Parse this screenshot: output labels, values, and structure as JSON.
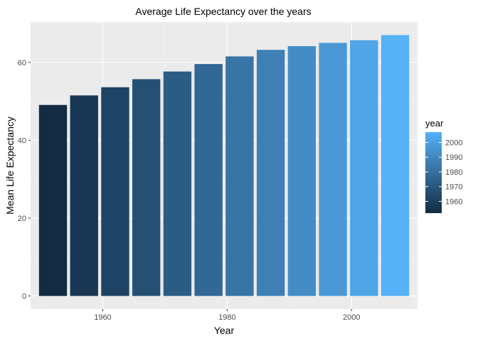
{
  "chart_data": {
    "type": "bar",
    "title": "Average Life Expectancy over the years",
    "xlabel": "Year",
    "ylabel": "Mean Life Expectancy",
    "categories": [
      1952,
      1957,
      1962,
      1967,
      1972,
      1977,
      1982,
      1987,
      1992,
      1997,
      2002,
      2007
    ],
    "values": [
      49.06,
      51.51,
      53.61,
      55.68,
      57.65,
      59.57,
      61.53,
      63.21,
      64.16,
      65.01,
      65.69,
      67.01
    ],
    "xlim": [
      1948.4,
      2010.6
    ],
    "ylim": [
      -3.35,
      70.36
    ],
    "x_ticks": [
      1960,
      1980,
      2000
    ],
    "y_ticks": [
      0,
      20,
      40,
      60
    ],
    "grid": true,
    "fill": {
      "by": "year",
      "low": "#132B43",
      "high": "#56B1F7",
      "range": [
        1952,
        2007
      ]
    },
    "legend": {
      "title": "year",
      "position": "right",
      "labels": [
        1960,
        1970,
        1980,
        1990,
        2000
      ]
    }
  }
}
